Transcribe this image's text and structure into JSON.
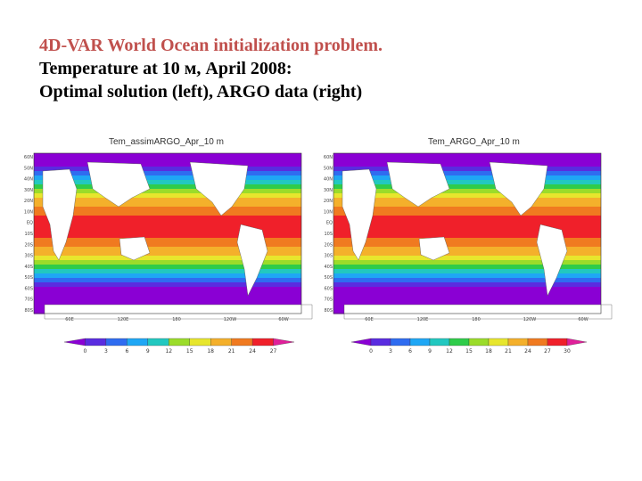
{
  "title": {
    "line1": "4D-VAR World Ocean initialization problem.",
    "line2": "Temperature at 10 м, April 2008:",
    "line3": "Optimal solution (left), ARGO data (right)"
  },
  "maps": [
    {
      "caption": "Tem_assimARGO_Apr_10 m",
      "lat_ticks": [
        "60N",
        "50N",
        "40N",
        "30N",
        "20N",
        "10N",
        "EQ",
        "10S",
        "20S",
        "30S",
        "40S",
        "50S",
        "60S",
        "70S",
        "80S"
      ],
      "lon_ticks": [
        "60E",
        "120E",
        "180",
        "120W",
        "60W"
      ],
      "colorbar_ticks": [
        "0",
        "3",
        "6",
        "9",
        "12",
        "15",
        "18",
        "21",
        "24",
        "27"
      ]
    },
    {
      "caption": "Tem_ARGO_Apr_10 m",
      "lat_ticks": [
        "60N",
        "50N",
        "40N",
        "30N",
        "20N",
        "10N",
        "EQ",
        "10S",
        "20S",
        "30S",
        "40S",
        "50S",
        "60S",
        "70S",
        "80S"
      ],
      "lon_ticks": [
        "60E",
        "120E",
        "180",
        "120W",
        "60W"
      ],
      "colorbar_ticks": [
        "0",
        "3",
        "6",
        "9",
        "12",
        "15",
        "18",
        "21",
        "24",
        "27",
        "30"
      ]
    }
  ],
  "colors": {
    "bands": [
      "#8a00d4",
      "#5a2ce0",
      "#2f6cf0",
      "#1fa7f5",
      "#22c8c0",
      "#2fcc4a",
      "#9bdc2a",
      "#e7e62d",
      "#f4b02b",
      "#f07a20",
      "#f0202a",
      "#e0209a"
    ],
    "land": "#ffffff",
    "title_accent": "#c0504d"
  }
}
